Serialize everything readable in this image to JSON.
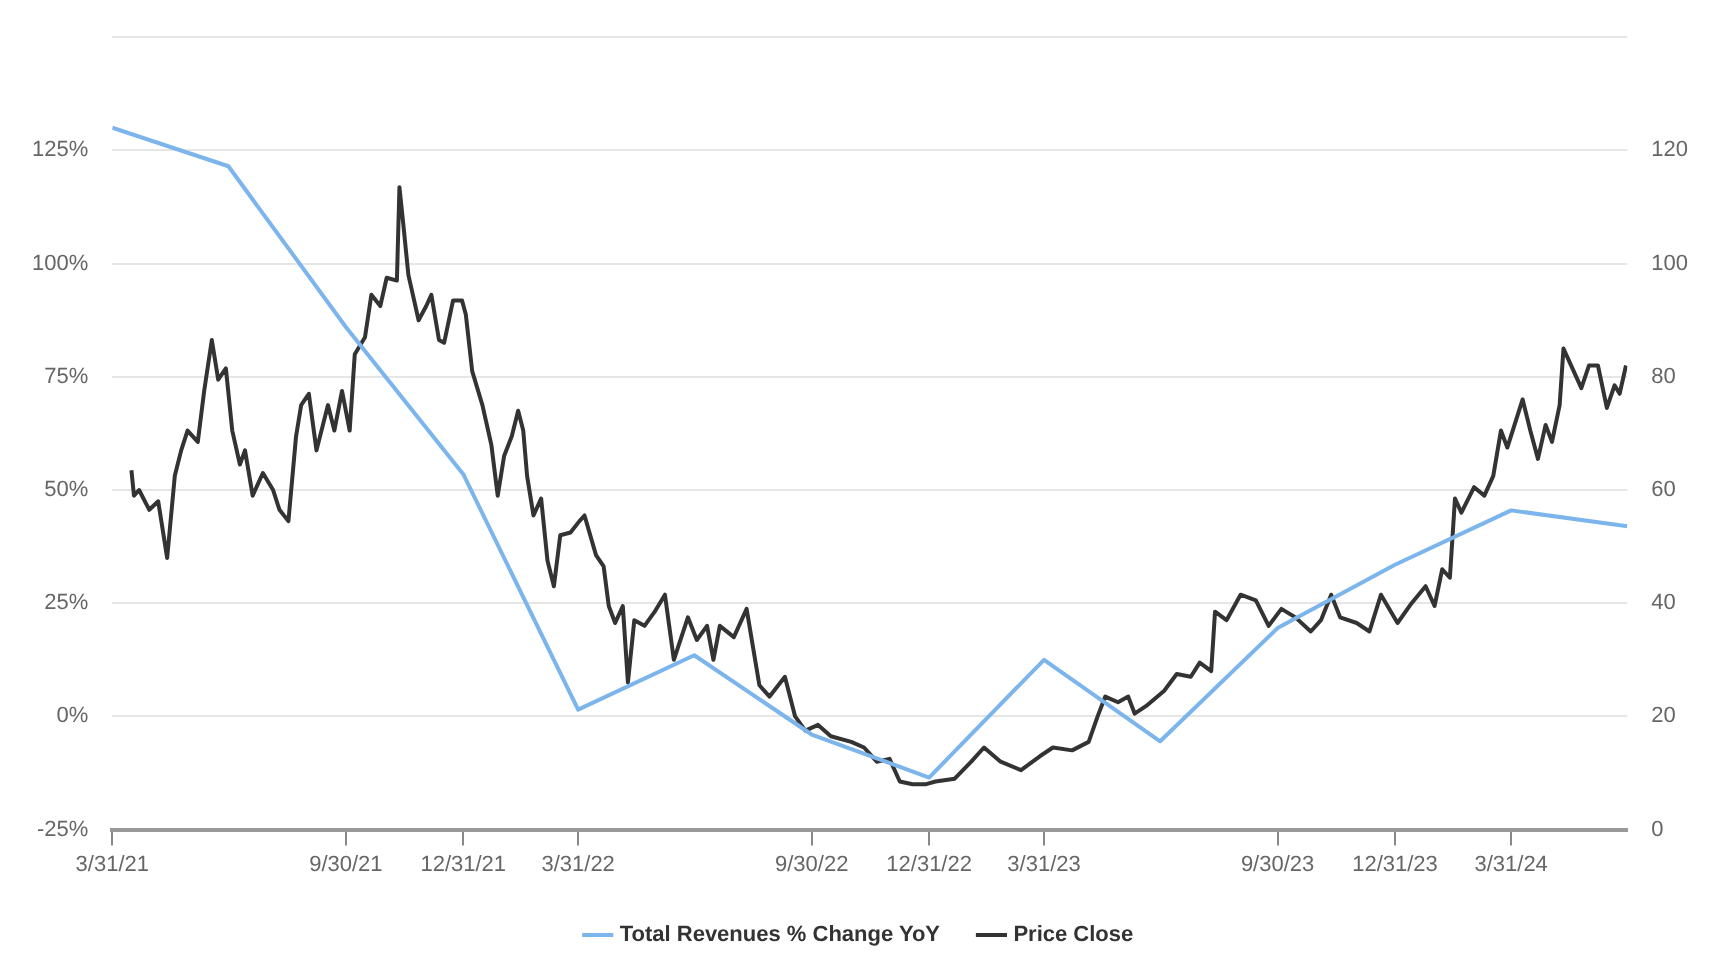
{
  "chart_data": {
    "type": "line",
    "legend": "bottom",
    "grid": "y",
    "marker": "none",
    "line_style": "solid",
    "xlim": [
      "2021-03-31",
      "2024-06-30"
    ],
    "xticks": [
      {
        "value": "2021-03-31",
        "label": "3/31/21"
      },
      {
        "value": "2021-09-30",
        "label": "9/30/21"
      },
      {
        "value": "2021-12-31",
        "label": "12/31/21"
      },
      {
        "value": "2022-03-31",
        "label": "3/31/22"
      },
      {
        "value": "2022-09-30",
        "label": "9/30/22"
      },
      {
        "value": "2022-12-31",
        "label": "12/31/22"
      },
      {
        "value": "2023-03-31",
        "label": "3/31/23"
      },
      {
        "value": "2023-09-30",
        "label": "9/30/23"
      },
      {
        "value": "2023-12-31",
        "label": "12/31/23"
      },
      {
        "value": "2024-03-31",
        "label": "3/31/24"
      }
    ],
    "ylim": [
      -25,
      150
    ],
    "yticks": [
      {
        "value": -25,
        "label": "-25%"
      },
      {
        "value": 0,
        "label": "0%"
      },
      {
        "value": 25,
        "label": "25%"
      },
      {
        "value": 50,
        "label": "50%"
      },
      {
        "value": 75,
        "label": "75%"
      },
      {
        "value": 100,
        "label": "100%"
      },
      {
        "value": 125,
        "label": "125%"
      },
      {
        "value": 150,
        "label": null
      }
    ],
    "y2lim": [
      0,
      140
    ],
    "y2ticks": [
      0,
      20,
      40,
      60,
      80,
      100,
      120
    ],
    "series": [
      {
        "name": "Total Revenues % Change YoY",
        "color": "#7cb5ec",
        "x": [
          "2021-03-31",
          "2021-06-30",
          "2021-09-30",
          "2021-12-31",
          "2022-03-31",
          "2022-06-30",
          "2022-09-30",
          "2022-12-31",
          "2023-03-31",
          "2023-06-30",
          "2023-09-30",
          "2023-12-31",
          "2024-03-31",
          "2024-06-30"
        ],
        "values": [
          130,
          121.5,
          86,
          53.5,
          1.5,
          13.5,
          -4,
          -13.5,
          12.5,
          -5.5,
          19.5,
          33.5,
          45.5,
          42
        ]
      },
      {
        "name": "Price Close",
        "color": "#333333",
        "axis": "y2",
        "x": [
          "2021-04-15",
          "2021-04-17",
          "2021-04-21",
          "2021-04-29",
          "2021-05-06",
          "2021-05-13",
          "2021-05-19",
          "2021-05-24",
          "2021-05-29",
          "2021-06-06",
          "2021-06-11",
          "2021-06-17",
          "2021-06-22",
          "2021-06-28",
          "2021-07-03",
          "2021-07-09",
          "2021-07-13",
          "2021-07-19",
          "2021-07-27",
          "2021-08-04",
          "2021-08-09",
          "2021-08-16",
          "2021-08-22",
          "2021-08-26",
          "2021-09-01",
          "2021-09-07",
          "2021-09-16",
          "2021-09-21",
          "2021-09-27",
          "2021-10-03",
          "2021-10-07",
          "2021-10-15",
          "2021-10-20",
          "2021-10-27",
          "2021-11-01",
          "2021-11-09",
          "2021-11-11",
          "2021-11-14",
          "2021-11-18",
          "2021-11-26",
          "2021-12-02",
          "2021-12-06",
          "2021-12-12",
          "2021-12-16",
          "2021-12-23",
          "2021-12-30",
          "2022-01-02",
          "2022-01-07",
          "2022-01-15",
          "2022-01-22",
          "2022-01-27",
          "2022-02-01",
          "2022-02-07",
          "2022-02-12",
          "2022-02-16",
          "2022-02-19",
          "2022-02-24",
          "2022-03-02",
          "2022-03-07",
          "2022-03-12",
          "2022-03-17",
          "2022-03-25",
          "2022-04-01",
          "2022-04-05",
          "2022-04-14",
          "2022-04-20",
          "2022-04-24",
          "2022-04-29",
          "2022-05-05",
          "2022-05-09",
          "2022-05-14",
          "2022-05-22",
          "2022-05-30",
          "2022-06-07",
          "2022-06-14",
          "2022-06-25",
          "2022-07-02",
          "2022-07-10",
          "2022-07-15",
          "2022-07-20",
          "2022-07-31",
          "2022-08-10",
          "2022-08-20",
          "2022-08-28",
          "2022-09-09",
          "2022-09-17",
          "2022-09-25",
          "2022-10-05",
          "2022-10-15",
          "2022-10-31",
          "2022-11-10",
          "2022-11-20",
          "2022-11-30",
          "2022-12-08",
          "2022-12-18",
          "2022-12-28",
          "2023-01-05",
          "2023-01-20",
          "2023-02-02",
          "2023-02-12",
          "2023-02-25",
          "2023-03-13",
          "2023-03-28",
          "2023-04-07",
          "2023-04-22",
          "2023-05-05",
          "2023-05-12",
          "2023-05-18",
          "2023-05-28",
          "2023-06-05",
          "2023-06-10",
          "2023-06-20",
          "2023-07-03",
          "2023-07-13",
          "2023-07-24",
          "2023-07-31",
          "2023-08-09",
          "2023-08-12",
          "2023-08-21",
          "2023-09-01",
          "2023-09-13",
          "2023-09-23",
          "2023-10-03",
          "2023-10-14",
          "2023-10-26",
          "2023-11-03",
          "2023-11-11",
          "2023-11-18",
          "2023-12-01",
          "2023-12-11",
          "2023-12-20",
          "2024-01-02",
          "2024-01-13",
          "2024-01-24",
          "2024-01-31",
          "2024-02-06",
          "2024-02-12",
          "2024-02-16",
          "2024-02-21",
          "2024-03-02",
          "2024-03-10",
          "2024-03-17",
          "2024-03-23",
          "2024-03-28",
          "2024-04-09",
          "2024-04-15",
          "2024-04-21",
          "2024-04-27",
          "2024-05-02",
          "2024-05-08",
          "2024-05-11",
          "2024-05-15",
          "2024-05-25",
          "2024-05-31",
          "2024-06-07",
          "2024-06-14",
          "2024-06-20",
          "2024-06-24",
          "2024-06-29"
        ],
        "values": [
          63.5,
          59,
          60,
          56.5,
          58,
          48,
          62.5,
          67,
          70.5,
          68.5,
          77.5,
          86.5,
          79.5,
          81.5,
          70.5,
          64.5,
          67,
          59,
          63,
          60,
          56.5,
          54.5,
          69.5,
          75,
          77,
          67,
          75,
          70.5,
          77.5,
          70.5,
          84,
          87,
          94.5,
          92.5,
          97.5,
          97,
          113.5,
          107,
          98,
          90,
          92.5,
          94.5,
          86.5,
          86,
          93.5,
          93.5,
          91,
          81,
          75,
          68,
          59,
          66,
          69.5,
          74,
          70.5,
          62.5,
          55.5,
          58.5,
          47.5,
          43,
          52,
          52.5,
          54.5,
          55.5,
          48.5,
          46.5,
          39.5,
          36.5,
          39.5,
          26,
          37,
          36,
          38.5,
          41.5,
          30,
          37.5,
          33.5,
          36,
          30,
          36,
          34,
          39,
          25.5,
          23.5,
          27,
          20,
          17.5,
          18.5,
          16.5,
          15.5,
          14.5,
          12,
          12.5,
          8.5,
          8,
          8,
          8.5,
          9,
          12,
          14.5,
          12,
          10.5,
          13,
          14.5,
          14,
          15.5,
          20,
          23.5,
          22.5,
          23.5,
          20.5,
          22,
          24.5,
          27.5,
          27,
          29.5,
          28,
          38.5,
          37,
          41.5,
          40.5,
          36,
          39,
          37.5,
          35,
          37,
          41.5,
          37.5,
          36.5,
          35,
          41.5,
          36.5,
          40,
          43,
          39.5,
          46,
          44.5,
          58.5,
          56,
          60.5,
          59,
          62.5,
          70.5,
          67.5,
          76,
          70.5,
          65.5,
          71.5,
          68.5,
          75,
          85,
          83,
          78,
          82,
          82,
          74.5,
          78.5,
          77,
          82
        ]
      }
    ]
  }
}
